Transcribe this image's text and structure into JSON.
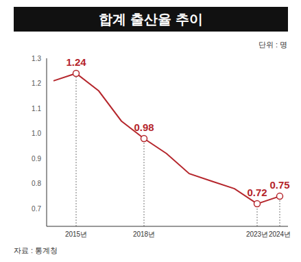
{
  "chart_data": {
    "type": "line",
    "title": "합계 출산율 추이",
    "unit": "단위 : 명",
    "source": "자료 : 통계청",
    "categories": [
      null,
      "2015년",
      null,
      null,
      "2018년",
      null,
      null,
      null,
      null,
      "2023년",
      "2024년"
    ],
    "values": [
      1.21,
      1.24,
      1.17,
      1.05,
      0.98,
      0.92,
      0.84,
      0.81,
      0.78,
      0.72,
      0.75
    ],
    "value_labels": [
      null,
      "1.24",
      null,
      null,
      "0.98",
      null,
      null,
      null,
      null,
      "0.72",
      "0.75"
    ],
    "color": "#b5262c",
    "marker": "circle",
    "ylim": [
      0.63,
      1.3
    ],
    "yticks": [
      0.7,
      0.8,
      0.9,
      {
        "value": 1,
        "label": "1.0"
      },
      1.1,
      1.2,
      1.3
    ],
    "grid": false
  }
}
